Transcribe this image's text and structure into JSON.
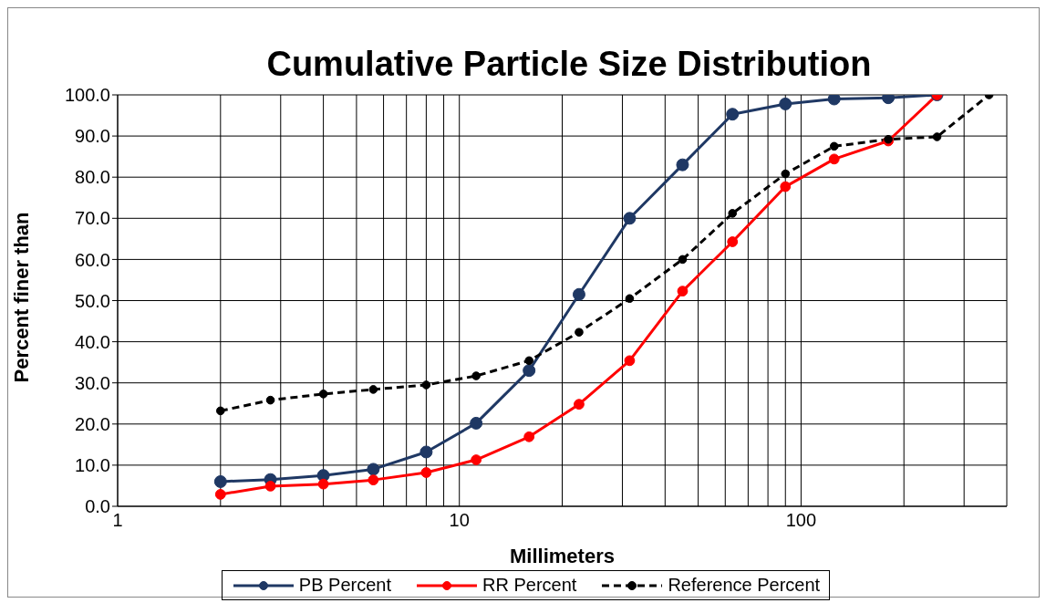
{
  "chart_data": {
    "type": "line",
    "title": "Cumulative Particle Size Distribution",
    "xlabel": "Millimeters",
    "ylabel": "Percent finer than",
    "log": "x",
    "grid": true,
    "legend": "bottom",
    "marker": "circle",
    "xlim": [
      1,
      400
    ],
    "xticks": [
      1,
      {
        "value": 2,
        "label": null
      },
      {
        "value": 3,
        "label": null
      },
      {
        "value": 4,
        "label": null
      },
      {
        "value": 5,
        "label": null
      },
      {
        "value": 6,
        "label": null
      },
      {
        "value": 7,
        "label": null
      },
      {
        "value": 8,
        "label": null
      },
      {
        "value": 9,
        "label": null
      },
      10,
      {
        "value": 20,
        "label": null
      },
      {
        "value": 30,
        "label": null
      },
      {
        "value": 40,
        "label": null
      },
      {
        "value": 50,
        "label": null
      },
      {
        "value": 60,
        "label": null
      },
      {
        "value": 70,
        "label": null
      },
      {
        "value": 80,
        "label": null
      },
      {
        "value": 90,
        "label": null
      },
      100,
      {
        "value": 200,
        "label": null
      },
      {
        "value": 300,
        "label": null
      }
    ],
    "ylim": [
      0,
      100
    ],
    "yticks": [
      {
        "value": 0,
        "label": "0.0"
      },
      {
        "value": 10,
        "label": "10.0"
      },
      {
        "value": 20,
        "label": "20.0"
      },
      {
        "value": 30,
        "label": "30.0"
      },
      {
        "value": 40,
        "label": "40.0"
      },
      {
        "value": 50,
        "label": "50.0"
      },
      {
        "value": 60,
        "label": "60.0"
      },
      {
        "value": 70,
        "label": "70.0"
      },
      {
        "value": 80,
        "label": "80.0"
      },
      {
        "value": 90,
        "label": "90.0"
      },
      {
        "value": 100,
        "label": "100.0"
      }
    ],
    "series": [
      {
        "name": "PB Percent",
        "color": "#1f3864",
        "line_style": "solid",
        "x": [
          2,
          2.8,
          4,
          5.6,
          8,
          11.2,
          16,
          22.4,
          31.5,
          45,
          63,
          90,
          125,
          180,
          250
        ],
        "values": [
          6.0,
          6.5,
          7.5,
          9.0,
          13.2,
          20.2,
          33.0,
          51.5,
          70.0,
          83.0,
          95.3,
          97.8,
          99.0,
          99.3,
          100.0
        ]
      },
      {
        "name": "RR Percent",
        "color": "#ff0000",
        "line_style": "solid",
        "x": [
          2,
          2.8,
          4,
          5.6,
          8,
          11.2,
          16,
          22.4,
          31.5,
          45,
          63,
          90,
          125,
          180,
          250
        ],
        "values": [
          2.9,
          4.9,
          5.4,
          6.4,
          8.2,
          11.3,
          16.9,
          24.8,
          35.4,
          52.3,
          64.3,
          77.7,
          84.4,
          88.8,
          100.0
        ]
      },
      {
        "name": "Reference Percent",
        "color": "#000000",
        "line_style": "dashed",
        "x": [
          2,
          2.8,
          4,
          5.6,
          8,
          11.2,
          16,
          22.4,
          31.5,
          45,
          63,
          90,
          125,
          180,
          250,
          355
        ],
        "values": [
          23.2,
          25.8,
          27.3,
          28.4,
          29.5,
          31.7,
          35.4,
          42.3,
          50.5,
          60.0,
          71.2,
          80.8,
          87.5,
          89.2,
          89.8,
          100.0
        ]
      }
    ]
  }
}
